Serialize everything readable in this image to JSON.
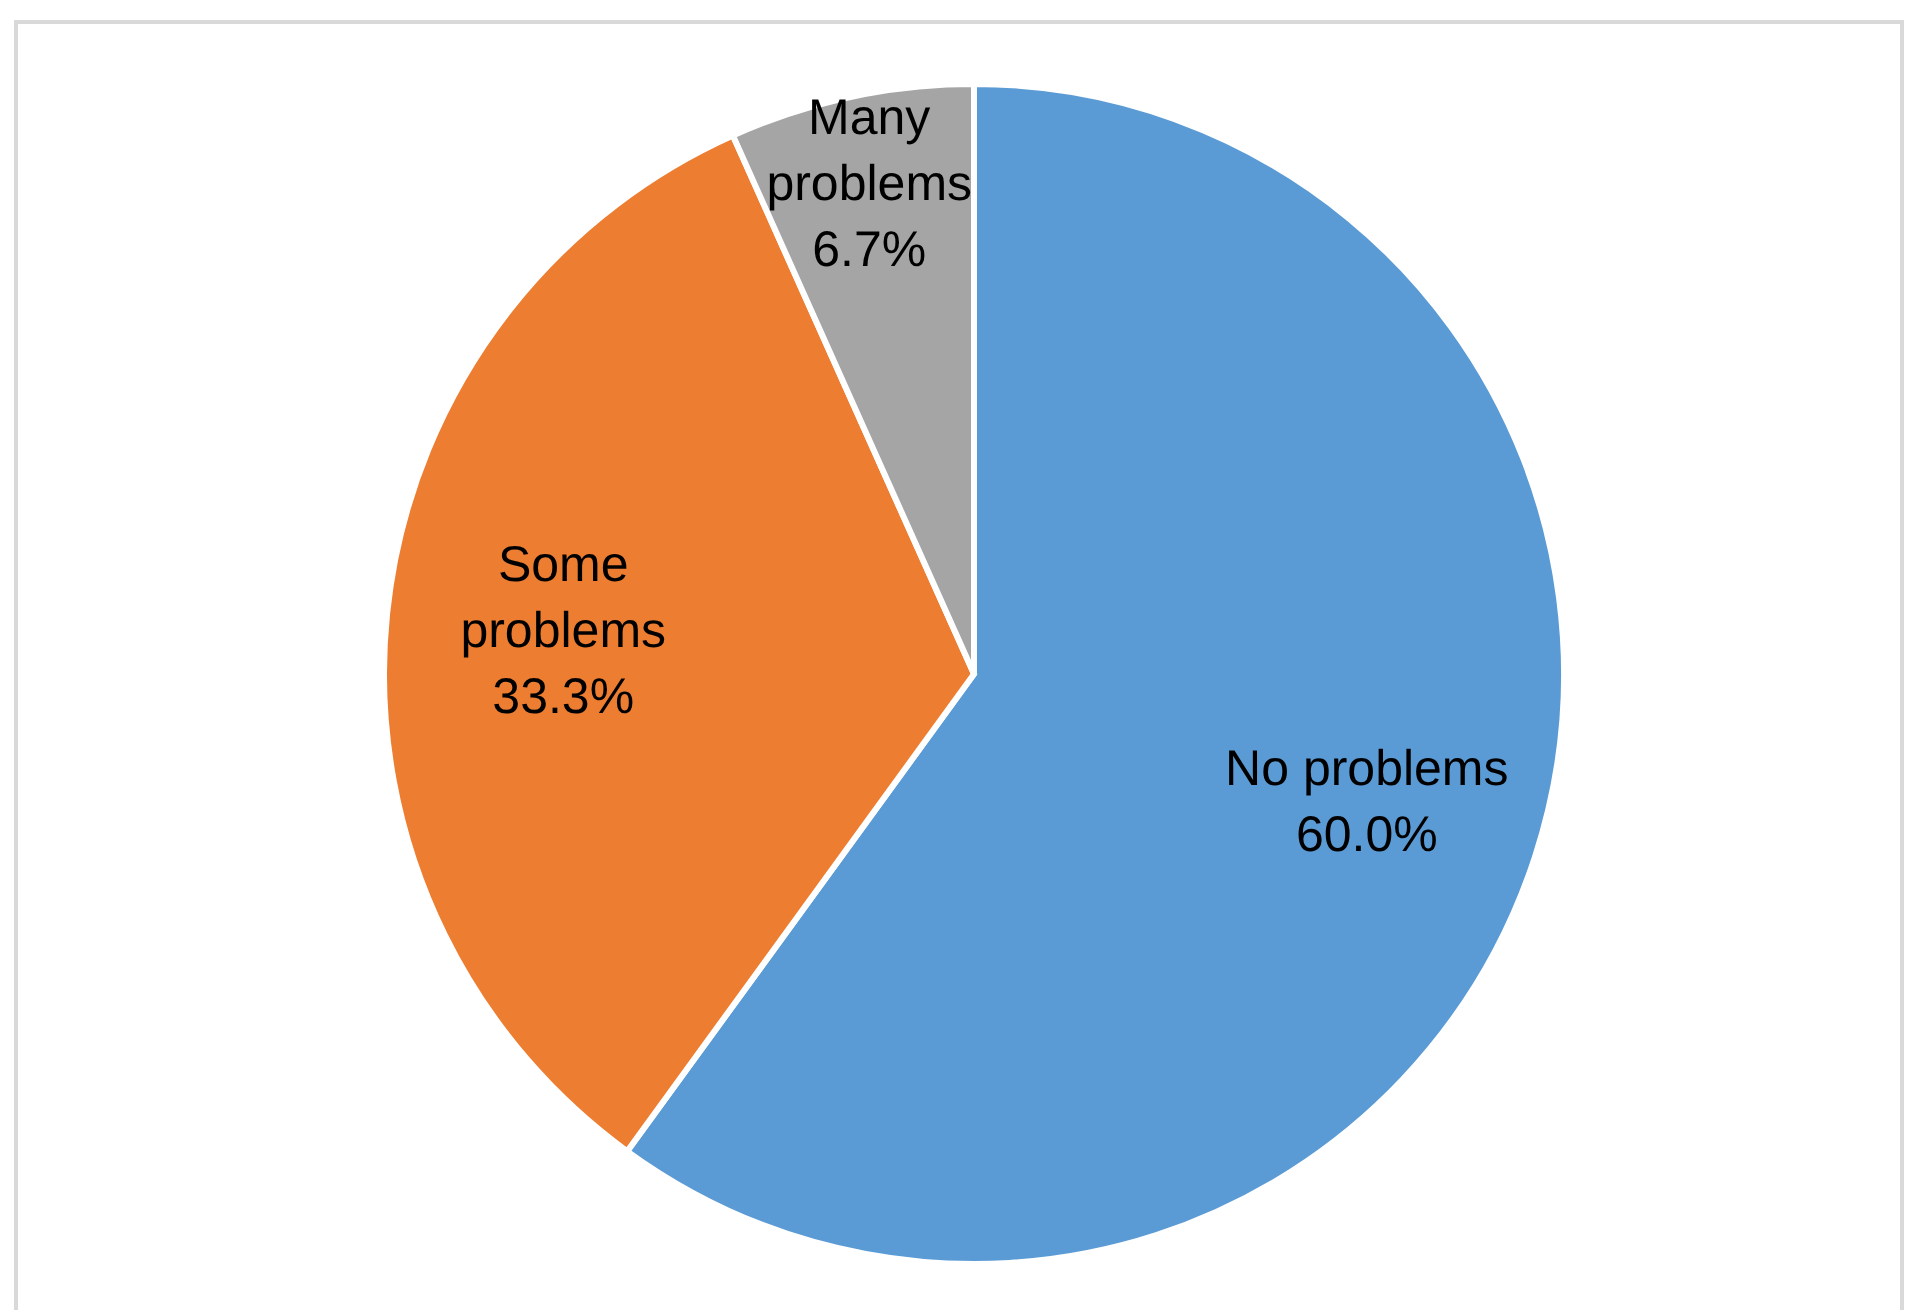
{
  "chart_data": {
    "type": "pie",
    "categories": [
      "No problems",
      "Some problems",
      "Many problems"
    ],
    "values": [
      60.0,
      33.3,
      6.7
    ],
    "colors": [
      "#5b9bd5",
      "#ed7d31",
      "#a5a5a5"
    ],
    "value_labels": [
      "60.0%",
      "33.3%",
      "6.7%"
    ]
  }
}
